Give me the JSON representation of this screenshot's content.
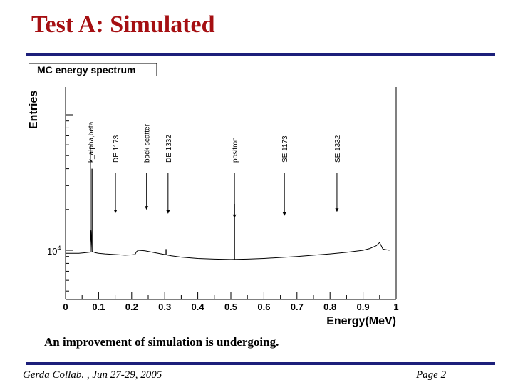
{
  "slide": {
    "title": "Test A: Simulated",
    "caption": "An improvement of simulation is undergoing.",
    "footer_left": "Gerda Collab. , Jun 27-29, 2005",
    "footer_right": "Page 2",
    "accent_title": "#a50f12",
    "accent_rule": "#1c1f7a"
  },
  "chart_data": {
    "type": "line",
    "title": "MC energy spectrum",
    "xlabel": "Energy(MeV)",
    "ylabel": "Entries",
    "xlim": [
      0,
      1
    ],
    "x_ticks": [
      "0",
      "0.1",
      "0.2",
      "0.3",
      "0.4",
      "0.5",
      "0.6",
      "0.7",
      "0.8",
      "0.9",
      "1"
    ],
    "y_scale": "log",
    "y_tick_base": "10",
    "y_tick_exp": "4",
    "series": [
      {
        "name": "MC energy spectrum",
        "x": [
          0.0,
          0.04,
          0.06,
          0.075,
          0.077,
          0.08,
          0.09,
          0.1,
          0.12,
          0.15,
          0.18,
          0.2,
          0.21,
          0.215,
          0.22,
          0.24,
          0.26,
          0.28,
          0.3,
          0.32,
          0.35,
          0.4,
          0.45,
          0.5,
          0.55,
          0.6,
          0.65,
          0.7,
          0.75,
          0.8,
          0.85,
          0.9,
          0.92,
          0.94,
          0.95,
          0.955,
          0.96,
          0.97,
          0.98
        ],
        "y": [
          9500,
          9500,
          9600,
          9700,
          14000,
          9800,
          9600,
          9500,
          9400,
          9300,
          9200,
          9250,
          9300,
          9800,
          10000,
          9900,
          9700,
          9500,
          9300,
          9100,
          8900,
          8700,
          8600,
          8550,
          8600,
          8700,
          8850,
          9000,
          9200,
          9400,
          9650,
          10000,
          10300,
          10800,
          11400,
          10800,
          10200,
          10100,
          10000
        ]
      }
    ],
    "peaks": [
      {
        "x": 0.075,
        "y": 60000
      },
      {
        "x": 0.08,
        "y": 40000
      },
      {
        "x": 0.511,
        "y": 22000
      },
      {
        "x": 0.304,
        "y": 10200
      }
    ],
    "annotations": [
      {
        "label": "k_alpha,beta",
        "x": 0.075,
        "arrow": false
      },
      {
        "label": "DE 1173",
        "x": 0.151,
        "arrow": true
      },
      {
        "label": "back scatter",
        "x": 0.245,
        "arrow": true
      },
      {
        "label": "DE 1332",
        "x": 0.31,
        "arrow": true
      },
      {
        "label": "positron",
        "x": 0.511,
        "arrow": true
      },
      {
        "label": "SE 1173",
        "x": 0.662,
        "arrow": true
      },
      {
        "label": "SE 1332",
        "x": 0.821,
        "arrow": true
      }
    ]
  }
}
